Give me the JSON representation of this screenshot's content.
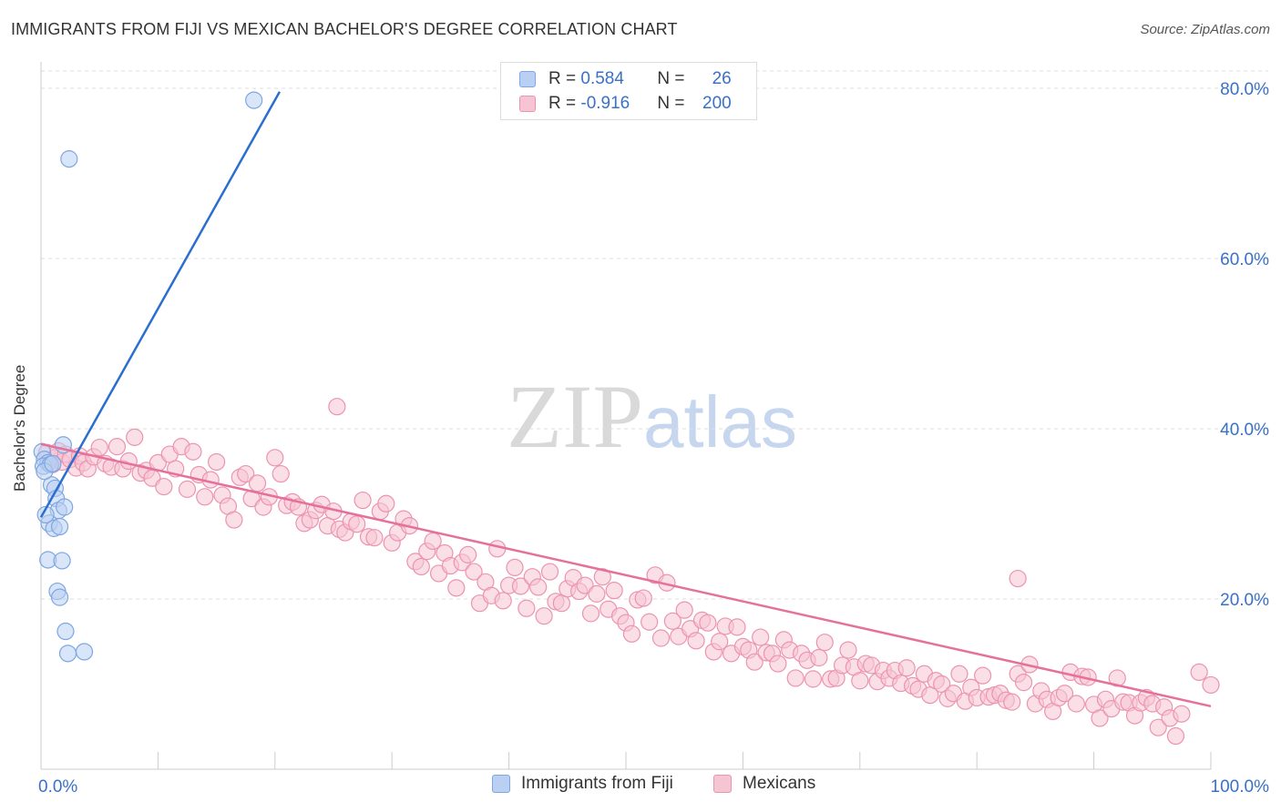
{
  "title": "IMMIGRANTS FROM FIJI VS MEXICAN BACHELOR'S DEGREE CORRELATION CHART",
  "source": "Source: ZipAtlas.com",
  "watermark": {
    "zip": "ZIP",
    "atlas": "atlas"
  },
  "colors": {
    "fiji_fill": "#b9d0f2",
    "fiji_stroke": "#7ea6e0",
    "fiji_line": "#2a6fcf",
    "mex_fill": "#f6c4d3",
    "mex_stroke": "#ec93b0",
    "mex_line": "#e5719b",
    "axis_label": "#3a70c7",
    "grid": "#dddddd"
  },
  "legend_top": {
    "rows": [
      {
        "r_label": "R = ",
        "r_value": "0.584",
        "n_label": "N = ",
        "n_value": "26"
      },
      {
        "r_label": "R = ",
        "r_value": "-0.916",
        "n_label": "N = ",
        "n_value": "200"
      }
    ]
  },
  "legend_bottom": {
    "fiji": "Immigrants from Fiji",
    "mex": "Mexicans"
  },
  "chart_data": {
    "type": "scatter",
    "title": "IMMIGRANTS FROM FIJI VS MEXICAN BACHELOR'S DEGREE CORRELATION CHART",
    "xlabel": "",
    "ylabel": "Bachelor's Degree",
    "xlim": [
      0,
      100
    ],
    "ylim": [
      0,
      80
    ],
    "x_tick_labels": [
      {
        "value": 0,
        "label": "0.0%"
      },
      {
        "value": 100,
        "label": "100.0%"
      }
    ],
    "y_tick_labels": [
      {
        "value": 20,
        "label": "20.0%"
      },
      {
        "value": 40,
        "label": "40.0%"
      },
      {
        "value": 60,
        "label": "60.0%"
      },
      {
        "value": 80,
        "label": "80.0%"
      }
    ],
    "grid": true,
    "legend_placement": "bottom",
    "series": [
      {
        "name": "Immigrants from Fiji",
        "r": 0.584,
        "n": 26,
        "trend": {
          "x": [
            0,
            20.4
          ],
          "y": [
            29.6,
            79.6
          ]
        },
        "points": [
          [
            18.2,
            78.6
          ],
          [
            2.4,
            71.7
          ],
          [
            0.1,
            37.3
          ],
          [
            0.3,
            36.4
          ],
          [
            0.6,
            36.0
          ],
          [
            0.2,
            35.6
          ],
          [
            0.8,
            35.8
          ],
          [
            1.9,
            38.1
          ],
          [
            0.9,
            33.4
          ],
          [
            1.2,
            33.0
          ],
          [
            1.3,
            31.8
          ],
          [
            1.5,
            30.4
          ],
          [
            0.7,
            28.9
          ],
          [
            1.1,
            28.3
          ],
          [
            1.6,
            28.5
          ],
          [
            2.0,
            30.8
          ],
          [
            0.4,
            29.9
          ],
          [
            0.6,
            24.6
          ],
          [
            1.8,
            24.5
          ],
          [
            1.4,
            20.9
          ],
          [
            1.6,
            20.2
          ],
          [
            2.1,
            16.2
          ],
          [
            2.3,
            13.6
          ],
          [
            3.7,
            13.8
          ],
          [
            0.3,
            35.0
          ],
          [
            1.0,
            35.9
          ]
        ]
      },
      {
        "name": "Mexicans",
        "r": -0.916,
        "n": 200,
        "trend": {
          "x": [
            0,
            100
          ],
          "y": [
            38.2,
            7.4
          ]
        },
        "points": [
          [
            0.5,
            37.2
          ],
          [
            1.0,
            35.8
          ],
          [
            1.2,
            36.6
          ],
          [
            1.5,
            37.4
          ],
          [
            1.8,
            36.1
          ],
          [
            2.1,
            37.0
          ],
          [
            2.5,
            36.4
          ],
          [
            3.0,
            35.4
          ],
          [
            3.3,
            36.8
          ],
          [
            3.6,
            36.0
          ],
          [
            4.0,
            35.3
          ],
          [
            4.5,
            36.7
          ],
          [
            5.0,
            37.8
          ],
          [
            5.5,
            35.9
          ],
          [
            6.0,
            35.5
          ],
          [
            6.5,
            37.9
          ],
          [
            7.0,
            35.3
          ],
          [
            7.5,
            36.2
          ],
          [
            8.0,
            39.0
          ],
          [
            8.5,
            34.8
          ],
          [
            9.0,
            35.1
          ],
          [
            9.5,
            34.2
          ],
          [
            10.0,
            36.0
          ],
          [
            10.5,
            33.2
          ],
          [
            11.0,
            37.0
          ],
          [
            11.5,
            35.3
          ],
          [
            12.0,
            37.9
          ],
          [
            12.5,
            32.9
          ],
          [
            13.0,
            37.3
          ],
          [
            13.5,
            34.6
          ],
          [
            14.0,
            32.0
          ],
          [
            14.5,
            34.0
          ],
          [
            15.0,
            36.1
          ],
          [
            15.5,
            32.2
          ],
          [
            16.0,
            30.9
          ],
          [
            16.5,
            29.3
          ],
          [
            17.0,
            34.3
          ],
          [
            17.5,
            34.7
          ],
          [
            18.0,
            31.8
          ],
          [
            18.5,
            33.6
          ],
          [
            19.0,
            30.8
          ],
          [
            19.5,
            32.0
          ],
          [
            20.0,
            36.6
          ],
          [
            20.5,
            34.7
          ],
          [
            21.0,
            31.0
          ],
          [
            21.5,
            31.4
          ],
          [
            22.0,
            30.8
          ],
          [
            22.5,
            28.9
          ],
          [
            23.0,
            29.3
          ],
          [
            23.5,
            30.4
          ],
          [
            24.0,
            31.1
          ],
          [
            24.5,
            28.6
          ],
          [
            25.0,
            30.3
          ],
          [
            25.5,
            28.2
          ],
          [
            26.0,
            27.8
          ],
          [
            26.5,
            29.1
          ],
          [
            27.0,
            28.8
          ],
          [
            27.5,
            31.6
          ],
          [
            28.0,
            27.3
          ],
          [
            28.5,
            27.2
          ],
          [
            29.0,
            30.3
          ],
          [
            29.5,
            31.2
          ],
          [
            30.0,
            26.6
          ],
          [
            30.5,
            27.8
          ],
          [
            31.0,
            29.4
          ],
          [
            31.5,
            28.6
          ],
          [
            32.0,
            24.4
          ],
          [
            32.5,
            23.8
          ],
          [
            33.0,
            25.6
          ],
          [
            33.5,
            26.8
          ],
          [
            34.0,
            23.0
          ],
          [
            34.5,
            25.4
          ],
          [
            35.0,
            23.9
          ],
          [
            35.5,
            21.3
          ],
          [
            36.0,
            24.3
          ],
          [
            36.5,
            25.2
          ],
          [
            37.0,
            23.2
          ],
          [
            37.5,
            19.5
          ],
          [
            38.0,
            22.0
          ],
          [
            38.5,
            20.4
          ],
          [
            39.0,
            25.9
          ],
          [
            39.5,
            19.8
          ],
          [
            40.0,
            21.6
          ],
          [
            40.5,
            23.7
          ],
          [
            41.0,
            21.5
          ],
          [
            41.5,
            18.9
          ],
          [
            42.0,
            22.6
          ],
          [
            42.5,
            21.4
          ],
          [
            43.0,
            18.0
          ],
          [
            43.5,
            23.2
          ],
          [
            44.0,
            19.7
          ],
          [
            44.5,
            19.5
          ],
          [
            45.0,
            21.2
          ],
          [
            45.5,
            22.5
          ],
          [
            46.0,
            20.9
          ],
          [
            46.5,
            21.6
          ],
          [
            47.0,
            18.3
          ],
          [
            47.5,
            20.6
          ],
          [
            48.0,
            22.6
          ],
          [
            48.5,
            18.8
          ],
          [
            49.0,
            21.0
          ],
          [
            49.5,
            18.0
          ],
          [
            50.0,
            17.2
          ],
          [
            50.5,
            15.9
          ],
          [
            51.0,
            19.9
          ],
          [
            51.5,
            20.1
          ],
          [
            52.0,
            17.3
          ],
          [
            52.5,
            22.8
          ],
          [
            53.0,
            15.4
          ],
          [
            53.5,
            21.9
          ],
          [
            54.0,
            17.4
          ],
          [
            54.5,
            15.6
          ],
          [
            55.0,
            18.7
          ],
          [
            55.5,
            16.5
          ],
          [
            56.0,
            15.1
          ],
          [
            56.5,
            17.5
          ],
          [
            57.0,
            17.2
          ],
          [
            57.5,
            13.8
          ],
          [
            58.0,
            15.0
          ],
          [
            58.5,
            16.8
          ],
          [
            59.0,
            13.6
          ],
          [
            59.5,
            16.7
          ],
          [
            60.0,
            14.4
          ],
          [
            60.5,
            14.0
          ],
          [
            61.0,
            12.6
          ],
          [
            61.5,
            15.5
          ],
          [
            62.0,
            13.7
          ],
          [
            62.5,
            13.6
          ],
          [
            63.0,
            12.4
          ],
          [
            63.5,
            15.2
          ],
          [
            64.0,
            14.0
          ],
          [
            64.5,
            10.7
          ],
          [
            65.0,
            13.6
          ],
          [
            65.5,
            12.8
          ],
          [
            66.0,
            10.6
          ],
          [
            66.5,
            13.1
          ],
          [
            67.0,
            14.9
          ],
          [
            67.5,
            10.6
          ],
          [
            68.0,
            10.7
          ],
          [
            68.5,
            12.2
          ],
          [
            69.0,
            14.0
          ],
          [
            69.5,
            12.0
          ],
          [
            70.0,
            10.4
          ],
          [
            70.5,
            12.4
          ],
          [
            71.0,
            12.2
          ],
          [
            71.5,
            10.3
          ],
          [
            72.0,
            11.6
          ],
          [
            72.5,
            10.7
          ],
          [
            73.0,
            11.6
          ],
          [
            73.5,
            10.1
          ],
          [
            74.0,
            11.9
          ],
          [
            74.5,
            9.8
          ],
          [
            75.0,
            9.4
          ],
          [
            75.5,
            11.2
          ],
          [
            76.0,
            8.7
          ],
          [
            76.5,
            10.4
          ],
          [
            77.0,
            10.0
          ],
          [
            77.5,
            8.3
          ],
          [
            78.0,
            8.9
          ],
          [
            78.5,
            11.2
          ],
          [
            79.0,
            8.0
          ],
          [
            79.5,
            9.6
          ],
          [
            80.0,
            8.4
          ],
          [
            80.5,
            11.0
          ],
          [
            81.0,
            8.5
          ],
          [
            81.5,
            8.7
          ],
          [
            82.0,
            8.9
          ],
          [
            82.5,
            8.1
          ],
          [
            83.0,
            7.9
          ],
          [
            83.5,
            11.2
          ],
          [
            84.0,
            10.2
          ],
          [
            84.5,
            12.3
          ],
          [
            85.0,
            7.7
          ],
          [
            85.5,
            9.2
          ],
          [
            86.0,
            8.2
          ],
          [
            86.5,
            6.8
          ],
          [
            87.0,
            8.4
          ],
          [
            87.5,
            8.9
          ],
          [
            88.0,
            11.4
          ],
          [
            88.5,
            7.7
          ],
          [
            89.0,
            10.9
          ],
          [
            89.5,
            10.8
          ],
          [
            90.0,
            7.6
          ],
          [
            90.5,
            6.0
          ],
          [
            91.0,
            8.2
          ],
          [
            91.5,
            7.1
          ],
          [
            92.0,
            10.7
          ],
          [
            92.5,
            7.9
          ],
          [
            93.0,
            7.8
          ],
          [
            93.5,
            6.3
          ],
          [
            94.0,
            7.8
          ],
          [
            94.5,
            8.4
          ],
          [
            95.0,
            7.7
          ],
          [
            95.5,
            4.9
          ],
          [
            96.0,
            7.3
          ],
          [
            96.5,
            6.0
          ],
          [
            97.0,
            3.9
          ],
          [
            97.5,
            6.5
          ],
          [
            99.0,
            11.4
          ],
          [
            100.0,
            9.9
          ],
          [
            25.3,
            42.6
          ],
          [
            83.5,
            22.4
          ]
        ]
      }
    ]
  }
}
